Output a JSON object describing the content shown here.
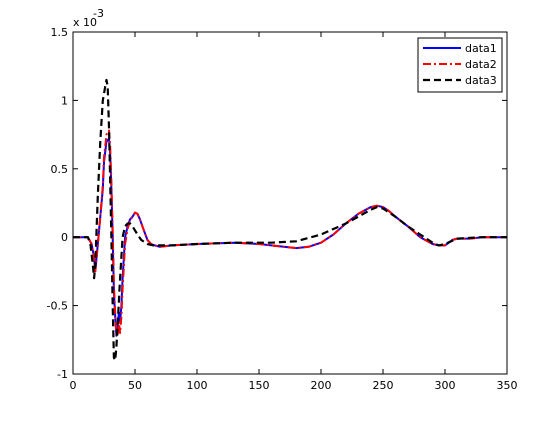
{
  "chart_data": {
    "type": "line",
    "title": "",
    "xlabel": "",
    "ylabel": "",
    "xlim": [
      0,
      350
    ],
    "ylim": [
      -1,
      1.5
    ],
    "x_ticks": [
      0,
      50,
      100,
      150,
      200,
      250,
      300,
      350
    ],
    "y_ticks": [
      -1,
      -0.5,
      0,
      0.5,
      1,
      1.5
    ],
    "x_tick_labels": [
      "0",
      "50",
      "100",
      "150",
      "200",
      "250",
      "300",
      "350"
    ],
    "y_tick_labels": [
      "-1",
      "-0.5",
      "0",
      "0.5",
      "1",
      "1.5"
    ],
    "y_exponent_base": "x 10",
    "y_exponent_power": "-3",
    "grid": false,
    "legend_position": "top-right",
    "series": [
      {
        "name": "data1",
        "color": "#0000ff",
        "style": "solid",
        "x": [
          0,
          12,
          15,
          17,
          18,
          20,
          22,
          24,
          25,
          27,
          29,
          30,
          31,
          32,
          33,
          34,
          35,
          36,
          37,
          38,
          39,
          40,
          42,
          44,
          46,
          48,
          50,
          52,
          54,
          56,
          58,
          60,
          63,
          66,
          70,
          80,
          100,
          130,
          150,
          170,
          180,
          190,
          200,
          210,
          220,
          230,
          240,
          245,
          250,
          255,
          260,
          270,
          280,
          290,
          295,
          300,
          303,
          306,
          310,
          320,
          330,
          340,
          350
        ],
        "y": [
          0,
          0,
          -0.05,
          -0.15,
          -0.25,
          -0.05,
          0.15,
          0.35,
          0.55,
          0.7,
          0.72,
          0.6,
          0.35,
          0.0,
          -0.4,
          -0.58,
          -0.72,
          -0.65,
          -0.55,
          -0.62,
          -0.5,
          -0.3,
          0.0,
          0.08,
          0.13,
          0.15,
          0.18,
          0.17,
          0.13,
          0.08,
          0.03,
          -0.02,
          -0.05,
          -0.06,
          -0.07,
          -0.06,
          -0.05,
          -0.04,
          -0.05,
          -0.07,
          -0.08,
          -0.07,
          -0.04,
          0.02,
          0.1,
          0.17,
          0.22,
          0.23,
          0.22,
          0.19,
          0.15,
          0.08,
          0.0,
          -0.05,
          -0.06,
          -0.06,
          -0.04,
          -0.02,
          -0.01,
          -0.01,
          0.0,
          0.0,
          0.0
        ]
      },
      {
        "name": "data2",
        "color": "#ff0000",
        "style": "dashdot",
        "x": [
          0,
          12,
          15,
          17,
          18,
          20,
          22,
          24,
          25,
          27,
          29,
          30,
          31,
          32,
          33,
          34,
          35,
          36,
          37,
          38,
          39,
          40,
          42,
          44,
          46,
          48,
          50,
          52,
          54,
          56,
          58,
          60,
          63,
          66,
          70,
          80,
          100,
          130,
          150,
          170,
          180,
          190,
          200,
          210,
          220,
          230,
          240,
          245,
          250,
          255,
          260,
          270,
          280,
          290,
          295,
          300,
          303,
          306,
          310,
          320,
          330,
          340,
          350
        ],
        "y": [
          0,
          0,
          -0.05,
          -0.15,
          -0.25,
          -0.06,
          0.15,
          0.38,
          0.58,
          0.75,
          0.78,
          0.66,
          0.4,
          0.05,
          -0.35,
          -0.55,
          -0.72,
          -0.72,
          -0.62,
          -0.7,
          -0.58,
          -0.38,
          -0.05,
          0.06,
          0.12,
          0.15,
          0.18,
          0.17,
          0.13,
          0.08,
          0.03,
          -0.02,
          -0.05,
          -0.06,
          -0.07,
          -0.06,
          -0.05,
          -0.04,
          -0.05,
          -0.07,
          -0.08,
          -0.07,
          -0.04,
          0.02,
          0.1,
          0.17,
          0.22,
          0.23,
          0.22,
          0.19,
          0.15,
          0.08,
          0.0,
          -0.05,
          -0.06,
          -0.06,
          -0.04,
          -0.02,
          -0.01,
          -0.01,
          0.0,
          0.0,
          0.0
        ]
      },
      {
        "name": "data3",
        "color": "#000000",
        "style": "dashed",
        "x": [
          0,
          12,
          14,
          16,
          17,
          18,
          20,
          22,
          24,
          25,
          26,
          27,
          28,
          29,
          30,
          31,
          32,
          33,
          34,
          35,
          36,
          38,
          40,
          42,
          44,
          46,
          48,
          50,
          52,
          55,
          60,
          65,
          70,
          80,
          100,
          130,
          160,
          180,
          200,
          220,
          230,
          240,
          245,
          250,
          260,
          270,
          280,
          290,
          295,
          300,
          305,
          310,
          320,
          330,
          340,
          350
        ],
        "y": [
          0,
          0,
          -0.05,
          -0.2,
          -0.3,
          -0.2,
          0.3,
          0.7,
          1.0,
          1.05,
          1.1,
          1.15,
          1.1,
          0.8,
          0.4,
          0.0,
          -0.5,
          -0.88,
          -0.9,
          -0.8,
          -0.65,
          -0.3,
          0.0,
          0.08,
          0.1,
          0.1,
          0.08,
          0.05,
          0.02,
          -0.02,
          -0.05,
          -0.06,
          -0.06,
          -0.06,
          -0.05,
          -0.04,
          -0.04,
          -0.03,
          0.02,
          0.1,
          0.15,
          0.2,
          0.22,
          0.21,
          0.15,
          0.08,
          0.02,
          -0.04,
          -0.06,
          -0.05,
          -0.03,
          -0.01,
          -0.005,
          0.0,
          0.0,
          0.0
        ]
      }
    ]
  }
}
